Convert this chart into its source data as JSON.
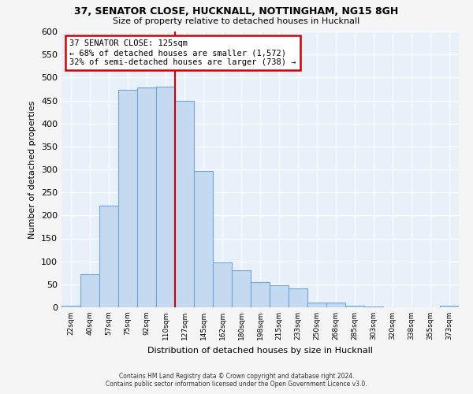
{
  "title1": "37, SENATOR CLOSE, HUCKNALL, NOTTINGHAM, NG15 8GH",
  "title2": "Size of property relative to detached houses in Hucknall",
  "xlabel": "Distribution of detached houses by size in Hucknall",
  "ylabel": "Number of detached properties",
  "categories": [
    "22sqm",
    "40sqm",
    "57sqm",
    "75sqm",
    "92sqm",
    "110sqm",
    "127sqm",
    "145sqm",
    "162sqm",
    "180sqm",
    "198sqm",
    "215sqm",
    "233sqm",
    "250sqm",
    "268sqm",
    "285sqm",
    "303sqm",
    "320sqm",
    "338sqm",
    "355sqm",
    "373sqm"
  ],
  "values": [
    3,
    72,
    221,
    474,
    478,
    480,
    450,
    296,
    97,
    80,
    55,
    48,
    41,
    10,
    10,
    4,
    2,
    0,
    0,
    0,
    3
  ],
  "bar_color": "#c5d9f0",
  "bar_edge_color": "#6fa8d6",
  "vline_color": "#cc0000",
  "annotation_text1": "37 SENATOR CLOSE: 125sqm",
  "annotation_text2": "← 68% of detached houses are smaller (1,572)",
  "annotation_text3": "32% of semi-detached houses are larger (738) →",
  "annotation_box_color": "#ffffff",
  "annotation_box_edge": "#cc0000",
  "ylim": [
    0,
    600
  ],
  "yticks": [
    0,
    50,
    100,
    150,
    200,
    250,
    300,
    350,
    400,
    450,
    500,
    550,
    600
  ],
  "footer1": "Contains HM Land Registry data © Crown copyright and database right 2024.",
  "footer2": "Contains public sector information licensed under the Open Government Licence v3.0.",
  "bg_color": "#e8f0fa",
  "grid_color": "#ffffff",
  "fig_bg": "#f5f5f5"
}
